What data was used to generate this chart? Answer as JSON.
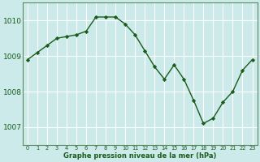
{
  "x": [
    0,
    1,
    2,
    3,
    4,
    5,
    6,
    7,
    8,
    9,
    10,
    11,
    12,
    13,
    14,
    15,
    16,
    17,
    18,
    19,
    20,
    21,
    22,
    23
  ],
  "y": [
    1008.9,
    1009.1,
    1009.3,
    1009.5,
    1009.55,
    1009.6,
    1009.7,
    1010.1,
    1010.1,
    1010.1,
    1009.9,
    1009.6,
    1009.15,
    1008.7,
    1008.35,
    1008.75,
    1008.35,
    1007.75,
    1007.1,
    1007.25,
    1007.7,
    1008.0,
    1008.6,
    1008.9
  ],
  "line_color": "#1a5c1a",
  "marker": "D",
  "marker_size": 2.2,
  "background_color": "#cceaea",
  "grid_color": "#ffffff",
  "xlabel": "Graphe pression niveau de la mer (hPa)",
  "xlabel_color": "#1a5c1a",
  "tick_color": "#1a5c1a",
  "ylim": [
    1006.5,
    1010.5
  ],
  "yticks": [
    1007,
    1008,
    1009,
    1010
  ],
  "xlim": [
    -0.5,
    23.5
  ],
  "xticks": [
    0,
    1,
    2,
    3,
    4,
    5,
    6,
    7,
    8,
    9,
    10,
    11,
    12,
    13,
    14,
    15,
    16,
    17,
    18,
    19,
    20,
    21,
    22,
    23
  ],
  "spine_color": "#5a8a5a",
  "linewidth": 1.0
}
